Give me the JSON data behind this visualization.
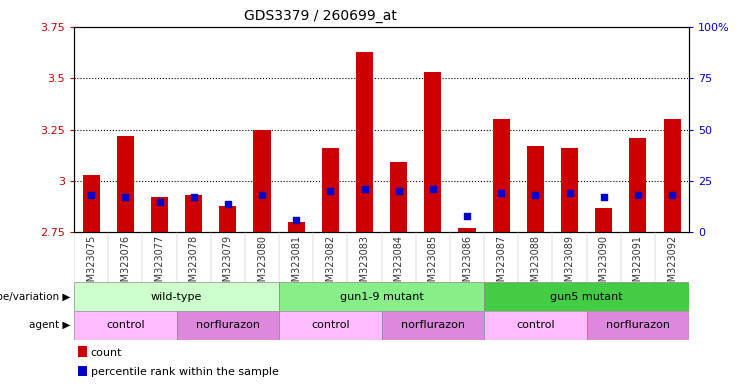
{
  "title": "GDS3379 / 260699_at",
  "samples": [
    "GSM323075",
    "GSM323076",
    "GSM323077",
    "GSM323078",
    "GSM323079",
    "GSM323080",
    "GSM323081",
    "GSM323082",
    "GSM323083",
    "GSM323084",
    "GSM323085",
    "GSM323086",
    "GSM323087",
    "GSM323088",
    "GSM323089",
    "GSM323090",
    "GSM323091",
    "GSM323092"
  ],
  "counts": [
    3.03,
    3.22,
    2.92,
    2.93,
    2.88,
    3.25,
    2.8,
    3.16,
    3.63,
    3.09,
    3.53,
    2.77,
    3.3,
    3.17,
    3.16,
    2.87,
    3.21,
    3.3
  ],
  "percentile_ranks": [
    18,
    17,
    15,
    17,
    14,
    18,
    6,
    20,
    21,
    20,
    21,
    8,
    19,
    18,
    19,
    17,
    18,
    18
  ],
  "ylim_left": [
    2.75,
    3.75
  ],
  "ylim_right": [
    0,
    100
  ],
  "yticks_left": [
    2.75,
    3.0,
    3.25,
    3.5,
    3.75
  ],
  "yticks_right": [
    0,
    25,
    50,
    75,
    100
  ],
  "ytick_labels_left": [
    "2.75",
    "3",
    "3.25",
    "3.5",
    "3.75"
  ],
  "ytick_labels_right": [
    "0",
    "25",
    "50",
    "75",
    "100%"
  ],
  "grid_lines": [
    3.0,
    3.25,
    3.5
  ],
  "bar_color": "#cc0000",
  "dot_color": "#0000cc",
  "bar_width": 0.5,
  "genotype_groups": [
    {
      "label": "wild-type",
      "start": 0,
      "end": 6,
      "color": "#ccffcc"
    },
    {
      "label": "gun1-9 mutant",
      "start": 6,
      "end": 12,
      "color": "#88ee88"
    },
    {
      "label": "gun5 mutant",
      "start": 12,
      "end": 18,
      "color": "#44cc44"
    }
  ],
  "agent_groups": [
    {
      "label": "control",
      "start": 0,
      "end": 3,
      "color": "#ffbbff"
    },
    {
      "label": "norflurazon",
      "start": 3,
      "end": 6,
      "color": "#dd88dd"
    },
    {
      "label": "control",
      "start": 6,
      "end": 9,
      "color": "#ffbbff"
    },
    {
      "label": "norflurazon",
      "start": 9,
      "end": 12,
      "color": "#dd88dd"
    },
    {
      "label": "control",
      "start": 12,
      "end": 15,
      "color": "#ffbbff"
    },
    {
      "label": "norflurazon",
      "start": 15,
      "end": 18,
      "color": "#dd88dd"
    }
  ],
  "title_fontsize": 10,
  "tick_label_color": "#333333",
  "axis_label_color_left": "#cc0000",
  "axis_label_color_right": "#0000cc",
  "xtick_bg_color": "#dddddd",
  "row_label_fontsize": 8,
  "annotation_fontsize": 8,
  "legend_fontsize": 8
}
